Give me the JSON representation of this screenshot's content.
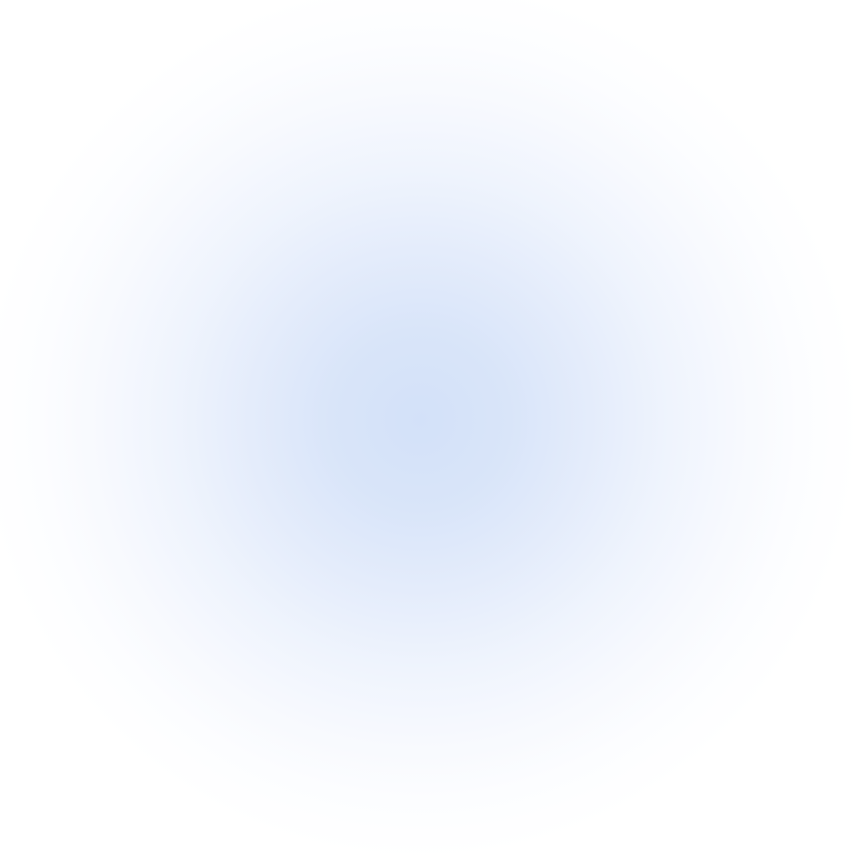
{
  "background": {
    "center_color": "#d3e1f9",
    "edge_color": "#ffffff"
  }
}
